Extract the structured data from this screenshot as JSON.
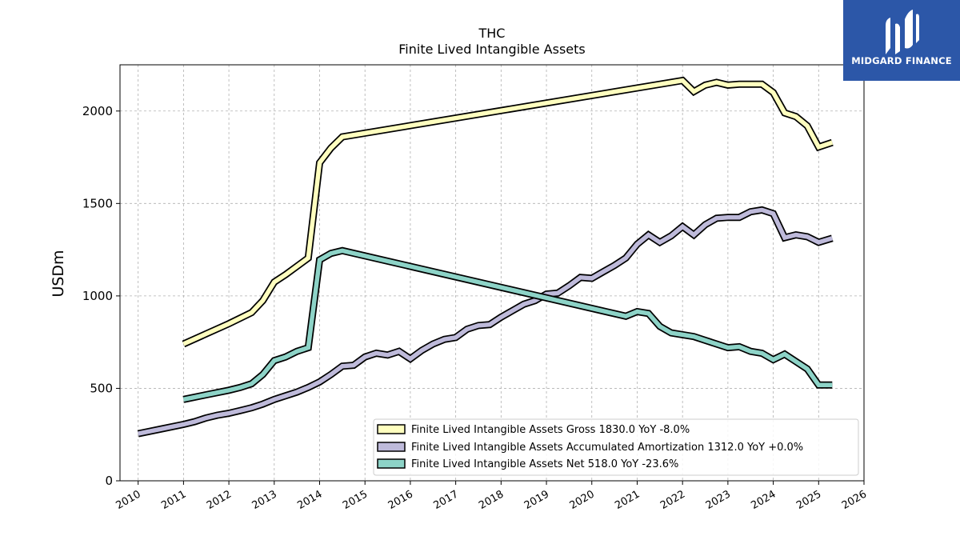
{
  "brand": {
    "name": "MIDGARD FINANCE",
    "color": "#2c57a8"
  },
  "chart_data": {
    "type": "line",
    "title": "THC",
    "subtitle": "Finite Lived Intangible Assets",
    "ylabel": "USDm",
    "xlabel": "",
    "xlim": [
      2009.6,
      2026.0
    ],
    "ylim": [
      0,
      2250
    ],
    "yticks": [
      0,
      500,
      1000,
      1500,
      2000
    ],
    "xticks": [
      2010,
      2011,
      2012,
      2013,
      2014,
      2015,
      2016,
      2017,
      2018,
      2019,
      2020,
      2021,
      2022,
      2023,
      2024,
      2025,
      2026
    ],
    "grid": true,
    "legend_position": "lower-right",
    "series": [
      {
        "name": "Finite Lived Intangible Assets Gross  1830.0 YoY -8.0%",
        "color": "#ffffbf",
        "points": [
          [
            2011.0,
            740
          ],
          [
            2011.5,
            795
          ],
          [
            2012.0,
            850
          ],
          [
            2012.5,
            910
          ],
          [
            2012.75,
            975
          ],
          [
            2013.0,
            1075
          ],
          [
            2013.25,
            1115
          ],
          [
            2013.5,
            1160
          ],
          [
            2013.75,
            1205
          ],
          [
            2014.0,
            1720
          ],
          [
            2014.25,
            1800
          ],
          [
            2014.5,
            1860
          ],
          [
            2022.0,
            2165
          ],
          [
            2022.25,
            2105
          ],
          [
            2022.5,
            2140
          ],
          [
            2022.75,
            2155
          ],
          [
            2023.0,
            2140
          ],
          [
            2023.25,
            2145
          ],
          [
            2023.5,
            2145
          ],
          [
            2023.75,
            2145
          ],
          [
            2024.0,
            2100
          ],
          [
            2024.25,
            1990
          ],
          [
            2024.5,
            1970
          ],
          [
            2024.75,
            1920
          ],
          [
            2025.0,
            1805
          ],
          [
            2025.3,
            1830
          ]
        ]
      },
      {
        "name": "Finite Lived Intangible Assets Accumulated Amortization  1312.0 YoY +0.0%",
        "color": "#bebada",
        "points": [
          [
            2010.0,
            255
          ],
          [
            2010.5,
            280
          ],
          [
            2011.0,
            305
          ],
          [
            2011.25,
            320
          ],
          [
            2011.5,
            340
          ],
          [
            2011.75,
            355
          ],
          [
            2012.0,
            365
          ],
          [
            2012.25,
            380
          ],
          [
            2012.5,
            395
          ],
          [
            2012.75,
            415
          ],
          [
            2013.0,
            440
          ],
          [
            2013.25,
            460
          ],
          [
            2013.5,
            480
          ],
          [
            2013.75,
            505
          ],
          [
            2014.0,
            535
          ],
          [
            2014.25,
            575
          ],
          [
            2014.5,
            620
          ],
          [
            2014.75,
            625
          ],
          [
            2015.0,
            670
          ],
          [
            2015.25,
            690
          ],
          [
            2015.5,
            680
          ],
          [
            2015.75,
            700
          ],
          [
            2016.0,
            660
          ],
          [
            2016.25,
            705
          ],
          [
            2016.5,
            740
          ],
          [
            2016.75,
            765
          ],
          [
            2017.0,
            775
          ],
          [
            2017.25,
            820
          ],
          [
            2017.5,
            840
          ],
          [
            2017.75,
            845
          ],
          [
            2018.0,
            885
          ],
          [
            2018.25,
            920
          ],
          [
            2018.5,
            955
          ],
          [
            2018.75,
            975
          ],
          [
            2019.0,
            1010
          ],
          [
            2019.25,
            1015
          ],
          [
            2019.5,
            1055
          ],
          [
            2019.75,
            1100
          ],
          [
            2020.0,
            1095
          ],
          [
            2020.25,
            1130
          ],
          [
            2020.5,
            1165
          ],
          [
            2020.75,
            1205
          ],
          [
            2021.0,
            1280
          ],
          [
            2021.25,
            1330
          ],
          [
            2021.5,
            1290
          ],
          [
            2021.75,
            1325
          ],
          [
            2022.0,
            1375
          ],
          [
            2022.25,
            1330
          ],
          [
            2022.5,
            1385
          ],
          [
            2022.75,
            1420
          ],
          [
            2023.0,
            1425
          ],
          [
            2023.25,
            1425
          ],
          [
            2023.5,
            1455
          ],
          [
            2023.75,
            1465
          ],
          [
            2024.0,
            1445
          ],
          [
            2024.25,
            1315
          ],
          [
            2024.5,
            1330
          ],
          [
            2024.75,
            1320
          ],
          [
            2025.0,
            1290
          ],
          [
            2025.3,
            1312
          ]
        ]
      },
      {
        "name": "Finite Lived Intangible Assets Net  518.0 YoY -23.6%",
        "color": "#8dd3c7",
        "points": [
          [
            2011.0,
            440
          ],
          [
            2011.5,
            465
          ],
          [
            2012.0,
            490
          ],
          [
            2012.25,
            505
          ],
          [
            2012.5,
            525
          ],
          [
            2012.75,
            575
          ],
          [
            2013.0,
            650
          ],
          [
            2013.25,
            670
          ],
          [
            2013.5,
            700
          ],
          [
            2013.75,
            720
          ],
          [
            2014.0,
            1195
          ],
          [
            2014.25,
            1230
          ],
          [
            2014.5,
            1245
          ],
          [
            2020.75,
            890
          ],
          [
            2021.0,
            915
          ],
          [
            2021.25,
            905
          ],
          [
            2021.5,
            835
          ],
          [
            2021.75,
            800
          ],
          [
            2022.0,
            790
          ],
          [
            2022.25,
            780
          ],
          [
            2022.5,
            760
          ],
          [
            2022.75,
            740
          ],
          [
            2023.0,
            720
          ],
          [
            2023.25,
            725
          ],
          [
            2023.5,
            700
          ],
          [
            2023.75,
            690
          ],
          [
            2024.0,
            655
          ],
          [
            2024.25,
            685
          ],
          [
            2024.5,
            645
          ],
          [
            2024.75,
            605
          ],
          [
            2025.0,
            518
          ],
          [
            2025.3,
            518
          ]
        ]
      }
    ]
  }
}
